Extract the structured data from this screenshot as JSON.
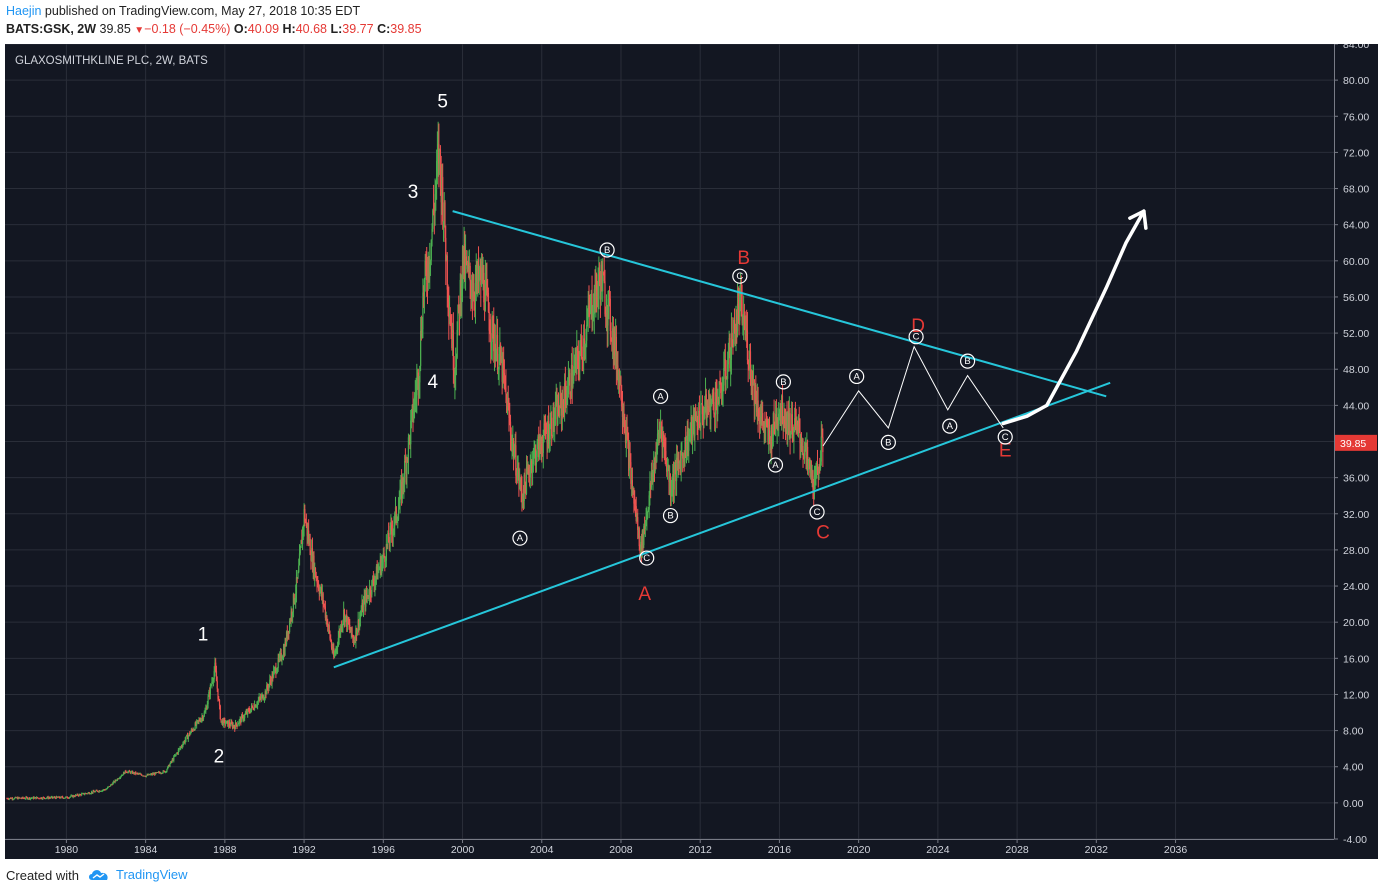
{
  "header": {
    "author": "Haejin",
    "published_text": " published on TradingView.com, May 27, 2018 10:35 EDT",
    "symbol": "BATS:GSK, 2W",
    "last": "39.85",
    "change": "−0.18 (−0.45%)",
    "o_label": "O:",
    "o_value": "40.09",
    "h_label": "H:",
    "h_value": "40.68",
    "l_label": "L:",
    "l_value": "39.77",
    "c_label": "C:",
    "c_value": "39.85"
  },
  "footer": {
    "created_with": "Created with",
    "brand": "TradingView"
  },
  "colors": {
    "background": "#131722",
    "grid": "#2a2e39",
    "up": "#4caf50",
    "down": "#ef5350",
    "trendline": "#26c6da",
    "label_red": "#e53935",
    "label_white": "#ffffff",
    "price_tag": "#e53935"
  },
  "chart_data": {
    "type": "candlestick",
    "title": "GLAXOSMITHKLINE PLC, 2W, BATS",
    "x_ticks": [
      "1980",
      "1984",
      "1988",
      "1992",
      "1996",
      "2000",
      "2004",
      "2008",
      "2012",
      "2016",
      "2020",
      "2024",
      "2028",
      "2032",
      "2036"
    ],
    "y_ticks": [
      "84.00",
      "80.00",
      "76.00",
      "72.00",
      "68.00",
      "64.00",
      "60.00",
      "56.00",
      "52.00",
      "48.00",
      "44.00",
      "40.00",
      "36.00",
      "32.00",
      "28.00",
      "24.00",
      "20.00",
      "16.00",
      "12.00",
      "8.00",
      "4.00",
      "0.00",
      "-4.00"
    ],
    "ylim": [
      -4,
      84
    ],
    "xlim": [
      1976.9,
      2044.0
    ],
    "last_price_tag": "39.85",
    "last_price": 39.85,
    "price_path": [
      [
        1977.0,
        0.5
      ],
      [
        1980.0,
        0.6
      ],
      [
        1982.0,
        1.5
      ],
      [
        1983.0,
        3.5
      ],
      [
        1984.0,
        3.0
      ],
      [
        1985.0,
        3.5
      ],
      [
        1986.0,
        7.0
      ],
      [
        1987.0,
        10.0
      ],
      [
        1987.5,
        15.0
      ],
      [
        1987.8,
        9.0
      ],
      [
        1988.5,
        8.5
      ],
      [
        1990.0,
        12.0
      ],
      [
        1991.0,
        17.0
      ],
      [
        1991.7,
        25.0
      ],
      [
        1992.0,
        32.0
      ],
      [
        1992.5,
        26.0
      ],
      [
        1993.0,
        22.0
      ],
      [
        1993.5,
        16.0
      ],
      [
        1994.0,
        21.0
      ],
      [
        1994.5,
        18.0
      ],
      [
        1995.0,
        22.0
      ],
      [
        1996.0,
        27.0
      ],
      [
        1996.8,
        33.0
      ],
      [
        1997.3,
        40.0
      ],
      [
        1997.8,
        48.0
      ],
      [
        1998.0,
        56.0
      ],
      [
        1998.4,
        62.0
      ],
      [
        1998.8,
        72.0
      ],
      [
        1999.0,
        67.0
      ],
      [
        1999.3,
        56.0
      ],
      [
        1999.6,
        48.0
      ],
      [
        2000.0,
        60.0
      ],
      [
        2000.5,
        57.0
      ],
      [
        2001.0,
        58.0
      ],
      [
        2001.5,
        52.0
      ],
      [
        2002.0,
        48.0
      ],
      [
        2002.5,
        40.0
      ],
      [
        2003.0,
        34.0
      ],
      [
        2003.5,
        38.0
      ],
      [
        2004.0,
        40.0
      ],
      [
        2005.0,
        44.0
      ],
      [
        2006.0,
        50.0
      ],
      [
        2006.5,
        55.0
      ],
      [
        2007.0,
        58.0
      ],
      [
        2007.5,
        53.0
      ],
      [
        2008.0,
        46.0
      ],
      [
        2008.5,
        36.0
      ],
      [
        2009.0,
        28.0
      ],
      [
        2009.5,
        35.0
      ],
      [
        2010.0,
        42.0
      ],
      [
        2010.5,
        35.0
      ],
      [
        2011.0,
        38.0
      ],
      [
        2011.5,
        41.0
      ],
      [
        2012.0,
        43.0
      ],
      [
        2012.5,
        44.0
      ],
      [
        2013.0,
        45.0
      ],
      [
        2013.5,
        50.0
      ],
      [
        2014.0,
        55.0
      ],
      [
        2014.3,
        52.0
      ],
      [
        2014.7,
        46.0
      ],
      [
        2015.0,
        43.0
      ],
      [
        2015.5,
        40.0
      ],
      [
        2016.0,
        44.0
      ],
      [
        2016.5,
        42.0
      ],
      [
        2017.0,
        41.0
      ],
      [
        2017.5,
        37.0
      ],
      [
        2017.8,
        35.0
      ],
      [
        2018.0,
        38.0
      ],
      [
        2018.2,
        39.85
      ]
    ],
    "trendlines": [
      {
        "name": "upper",
        "points": [
          [
            1999.5,
            65.5
          ],
          [
            2032.5,
            45.0
          ]
        ]
      },
      {
        "name": "lower",
        "points": [
          [
            1993.5,
            15.0
          ],
          [
            2032.7,
            46.5
          ]
        ]
      }
    ],
    "projection": [
      [
        2018.2,
        39.5
      ],
      [
        2020.0,
        45.6
      ],
      [
        2021.5,
        41.5
      ],
      [
        2022.8,
        50.5
      ],
      [
        2024.5,
        43.5
      ],
      [
        2025.5,
        47.3
      ],
      [
        2027.3,
        41.5
      ]
    ],
    "arrow": [
      [
        2027.3,
        42.0
      ],
      [
        2028.5,
        42.8
      ],
      [
        2029.5,
        44.0
      ],
      [
        2031.0,
        50.0
      ],
      [
        2032.5,
        57.0
      ],
      [
        2033.5,
        62.0
      ],
      [
        2034.4,
        65.5
      ]
    ],
    "wave_labels": [
      {
        "text": "1",
        "x": 1986.9,
        "y": 18.5,
        "color": "white"
      },
      {
        "text": "2",
        "x": 1987.7,
        "y": 5.0,
        "color": "white"
      },
      {
        "text": "3",
        "x": 1997.5,
        "y": 67.5,
        "color": "white"
      },
      {
        "text": "4",
        "x": 1998.5,
        "y": 46.5,
        "color": "white"
      },
      {
        "text": "5",
        "x": 1999.0,
        "y": 77.5,
        "color": "white"
      },
      {
        "text": "A",
        "x": 2009.2,
        "y": 23.0,
        "color": "red"
      },
      {
        "text": "B",
        "x": 2014.2,
        "y": 60.2,
        "color": "red"
      },
      {
        "text": "C",
        "x": 2018.2,
        "y": 29.8,
        "color": "red"
      },
      {
        "text": "D",
        "x": 2023.0,
        "y": 52.7,
        "color": "red"
      },
      {
        "text": "E",
        "x": 2027.4,
        "y": 38.9,
        "color": "red"
      }
    ],
    "circle_labels": [
      {
        "text": "A",
        "x": 2002.9,
        "y": 29.3
      },
      {
        "text": "B",
        "x": 2007.3,
        "y": 61.2
      },
      {
        "text": "A",
        "x": 2010.0,
        "y": 45.0
      },
      {
        "text": "B",
        "x": 2010.5,
        "y": 31.8
      },
      {
        "text": "C",
        "x": 2009.3,
        "y": 27.1
      },
      {
        "text": "C",
        "x": 2014.0,
        "y": 58.3
      },
      {
        "text": "B",
        "x": 2016.2,
        "y": 46.6
      },
      {
        "text": "A",
        "x": 2015.8,
        "y": 37.4
      },
      {
        "text": "C",
        "x": 2017.9,
        "y": 32.2
      },
      {
        "text": "A",
        "x": 2019.9,
        "y": 47.2
      },
      {
        "text": "B",
        "x": 2021.5,
        "y": 39.9
      },
      {
        "text": "C",
        "x": 2022.9,
        "y": 51.6
      },
      {
        "text": "A",
        "x": 2024.6,
        "y": 41.7
      },
      {
        "text": "B",
        "x": 2025.5,
        "y": 48.9
      },
      {
        "text": "C",
        "x": 2027.4,
        "y": 40.5
      }
    ]
  }
}
